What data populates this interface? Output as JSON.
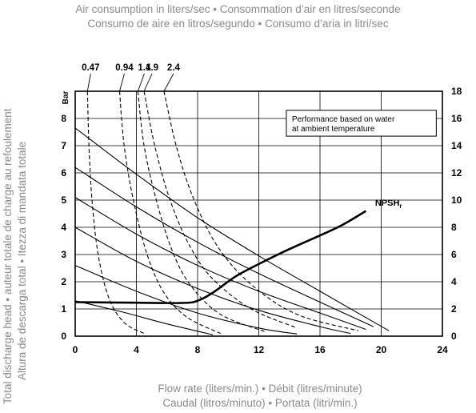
{
  "chart_data": {
    "type": "line",
    "title_lines": [
      "Air consumption in liters/sec • Consommation d’air en litres/seconde",
      "Consumo de aire en litros/segundo • Consumo d’aria in litri/sec"
    ],
    "xlabel_lines": [
      "Flow rate (liters/min.) • Débit (litres/minute)",
      "Caudal (litros/minuto) • Portata (litri/min.)"
    ],
    "ylabel_lines": [
      "Total discharge head • auteur totale de charge au refoulement",
      "Altura de descarga total • Itezza di mandata totale"
    ],
    "left_axis": {
      "unit": "Bar",
      "ylim": [
        0,
        9
      ],
      "ticks": [
        0,
        1,
        2,
        3,
        4,
        5,
        6,
        7,
        8
      ]
    },
    "right_axis": {
      "ylim": [
        0,
        18
      ],
      "ticks": [
        0,
        2,
        4,
        6,
        8,
        10,
        12,
        14,
        16,
        18
      ]
    },
    "x_axis": {
      "xlim": [
        0,
        24
      ],
      "ticks": [
        0,
        4,
        8,
        12,
        16,
        20,
        24
      ]
    },
    "grid": true,
    "note_lines": [
      "Performance based on water",
      "at ambient temperature"
    ],
    "npsh_label": "NPSH",
    "npsh_sub": "r",
    "air_labels": [
      "0.47",
      "0.94",
      "1.4",
      "1.9",
      "2.4"
    ],
    "series": [
      {
        "style": "head",
        "points": [
          [
            0,
            1.3
          ],
          [
            3,
            0.9
          ],
          [
            6,
            0.45
          ],
          [
            9,
            0.05
          ]
        ]
      },
      {
        "style": "head",
        "points": [
          [
            0,
            2.6
          ],
          [
            4,
            1.65
          ],
          [
            8,
            0.85
          ],
          [
            12,
            0.3
          ],
          [
            14.5,
            0.08
          ]
        ]
      },
      {
        "style": "head",
        "points": [
          [
            0,
            4.0
          ],
          [
            4,
            2.75
          ],
          [
            8,
            1.75
          ],
          [
            12,
            0.95
          ],
          [
            16,
            0.35
          ],
          [
            18,
            0.1
          ]
        ]
      },
      {
        "style": "head",
        "points": [
          [
            0,
            5.1
          ],
          [
            4,
            3.75
          ],
          [
            8,
            2.6
          ],
          [
            12,
            1.65
          ],
          [
            16,
            0.85
          ],
          [
            19,
            0.25
          ]
        ]
      },
      {
        "style": "head",
        "points": [
          [
            0,
            6.2
          ],
          [
            4,
            4.75
          ],
          [
            8,
            3.45
          ],
          [
            12,
            2.3
          ],
          [
            16,
            1.25
          ],
          [
            19.5,
            0.35
          ]
        ]
      },
      {
        "style": "head",
        "points": [
          [
            0,
            7.65
          ],
          [
            4,
            5.95
          ],
          [
            8,
            4.35
          ],
          [
            12,
            2.95
          ],
          [
            16,
            1.65
          ],
          [
            20.5,
            0.2
          ]
        ]
      },
      {
        "style": "air",
        "label_index": 0,
        "points": [
          [
            0.8,
            9.0
          ],
          [
            0.9,
            7.0
          ],
          [
            1.1,
            5.0
          ],
          [
            1.5,
            3.0
          ],
          [
            2.2,
            1.4
          ],
          [
            3.2,
            0.5
          ],
          [
            4.5,
            0.1
          ]
        ]
      },
      {
        "style": "air",
        "label_index": 1,
        "points": [
          [
            2.9,
            9.0
          ],
          [
            3.2,
            7.0
          ],
          [
            3.8,
            5.0
          ],
          [
            4.7,
            3.0
          ],
          [
            5.8,
            1.6
          ],
          [
            7.3,
            0.7
          ],
          [
            9.5,
            0.1
          ]
        ]
      },
      {
        "style": "air",
        "label_index": 2,
        "points": [
          [
            4.1,
            9.0
          ],
          [
            4.5,
            7.0
          ],
          [
            5.3,
            5.0
          ],
          [
            6.3,
            3.2
          ],
          [
            7.5,
            1.9
          ],
          [
            9.5,
            0.8
          ],
          [
            12.5,
            0.15
          ]
        ]
      },
      {
        "style": "air",
        "label_index": 3,
        "points": [
          [
            4.5,
            9.0
          ],
          [
            5.2,
            7.0
          ],
          [
            6.2,
            5.0
          ],
          [
            7.5,
            3.3
          ],
          [
            9.0,
            2.1
          ],
          [
            11.5,
            1.0
          ],
          [
            14.5,
            0.3
          ]
        ]
      },
      {
        "style": "air",
        "label_index": 4,
        "points": [
          [
            5.8,
            9.0
          ],
          [
            6.6,
            7.0
          ],
          [
            7.7,
            5.1
          ],
          [
            9.3,
            3.3
          ],
          [
            11.5,
            1.9
          ],
          [
            14.5,
            0.8
          ],
          [
            18.5,
            0.2
          ]
        ]
      },
      {
        "style": "npsh",
        "points": [
          [
            0,
            1.25
          ],
          [
            4,
            1.23
          ],
          [
            7,
            1.22
          ],
          [
            8,
            1.3
          ],
          [
            9,
            1.6
          ],
          [
            10.5,
            2.2
          ],
          [
            12,
            2.65
          ],
          [
            14,
            3.2
          ],
          [
            16,
            3.7
          ],
          [
            17.5,
            4.1
          ],
          [
            19,
            4.6
          ]
        ]
      }
    ]
  }
}
